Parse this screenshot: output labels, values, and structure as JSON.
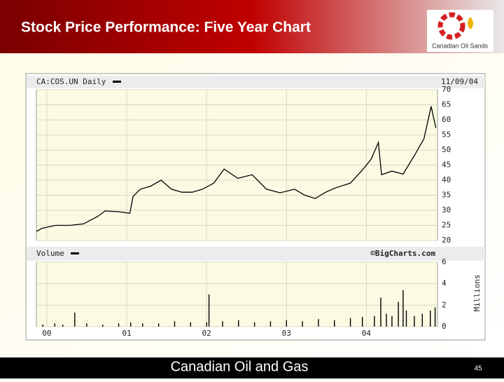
{
  "slide": {
    "title": "Stock Price Performance: Five Year Chart",
    "logo_text": "Canadian Oil Sands",
    "footer": "Canadian Oil and Gas",
    "page_number": 45
  },
  "chart_data": [
    {
      "type": "line",
      "title": "CA:COS.UN Daily",
      "subtitle": "11/09/04",
      "source": "©BigCharts.com",
      "x": [
        1999.87,
        1999.94,
        2000.11,
        2000.29,
        2000.46,
        2000.64,
        2000.73,
        2000.9,
        2001.04,
        2001.08,
        2001.17,
        2001.3,
        2001.43,
        2001.56,
        2001.69,
        2001.82,
        2001.95,
        2002.09,
        2002.22,
        2002.39,
        2002.57,
        2002.75,
        2002.92,
        2003.1,
        2003.23,
        2003.36,
        2003.49,
        2003.62,
        2003.8,
        2003.97,
        2004.06,
        2004.15,
        2004.19,
        2004.32,
        2004.46,
        2004.59,
        2004.72,
        2004.81,
        2004.87
      ],
      "values": [
        23,
        24,
        25,
        25,
        25.5,
        28,
        29.8,
        29.5,
        29,
        34.6,
        37,
        38,
        40,
        37,
        36,
        36,
        37,
        39,
        43.7,
        40.6,
        41.8,
        37,
        35.8,
        37,
        35,
        33.9,
        36,
        37.5,
        39,
        44,
        47,
        52.5,
        41.8,
        43,
        42,
        47.7,
        53.7,
        64.5,
        57.3
      ],
      "color": "#000000",
      "xlim": [
        1999.87,
        2004.89
      ],
      "xticks": [
        {
          "value": 2000,
          "label": "00"
        },
        {
          "value": 2001,
          "label": "01"
        },
        {
          "value": 2002,
          "label": "02"
        },
        {
          "value": 2003,
          "label": "03"
        },
        {
          "value": 2004,
          "label": "04"
        }
      ],
      "ylim": [
        20,
        70
      ],
      "yticks": [
        20,
        25,
        30,
        35,
        40,
        45,
        50,
        55,
        60,
        65,
        70
      ],
      "grid": true
    },
    {
      "type": "bar",
      "title": "Volume",
      "y_label": "Millions",
      "x": [
        1999.95,
        2000.1,
        2000.2,
        2000.35,
        2000.5,
        2000.7,
        2000.9,
        2001.05,
        2001.2,
        2001.4,
        2001.6,
        2001.8,
        2002.0,
        2002.03,
        2002.2,
        2002.4,
        2002.6,
        2002.8,
        2003.0,
        2003.2,
        2003.4,
        2003.6,
        2003.8,
        2003.95,
        2004.1,
        2004.18,
        2004.25,
        2004.32,
        2004.4,
        2004.46,
        2004.5,
        2004.6,
        2004.7,
        2004.8,
        2004.86
      ],
      "values": [
        0.2,
        0.3,
        0.2,
        1.3,
        0.3,
        0.2,
        0.3,
        0.4,
        0.3,
        0.3,
        0.5,
        0.4,
        0.4,
        3.0,
        0.5,
        0.6,
        0.4,
        0.5,
        0.6,
        0.5,
        0.7,
        0.6,
        0.8,
        0.9,
        1.0,
        2.7,
        1.2,
        1.0,
        2.3,
        3.4,
        1.5,
        1.0,
        1.2,
        1.5,
        1.8
      ],
      "color": "#000000",
      "xlim": [
        1999.87,
        2004.89
      ],
      "xticks": [
        {
          "value": 2000,
          "label": "00"
        },
        {
          "value": 2001,
          "label": "01"
        },
        {
          "value": 2002,
          "label": "02"
        },
        {
          "value": 2003,
          "label": "03"
        },
        {
          "value": 2004,
          "label": "04"
        }
      ],
      "ylim": [
        0,
        6
      ],
      "yticks": [
        0,
        2,
        4,
        6
      ],
      "grid": true
    }
  ]
}
